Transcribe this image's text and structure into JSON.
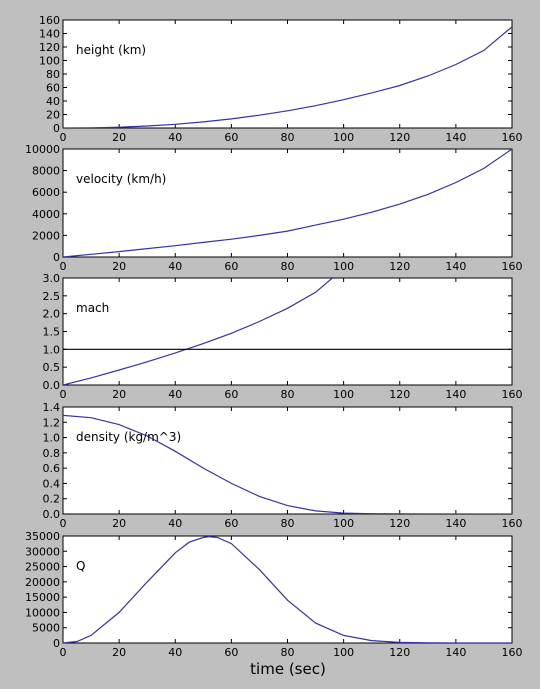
{
  "figure": {
    "background": "#bfbfbf",
    "line_color": "#3333aa",
    "xlabel": "time (sec)"
  },
  "chart_data": [
    {
      "type": "line",
      "label": "height (km)",
      "xlim": [
        0,
        160
      ],
      "ylim": [
        0,
        160
      ],
      "xticks": [
        0,
        20,
        40,
        60,
        80,
        100,
        120,
        140,
        160
      ],
      "yticks": [
        0,
        20,
        40,
        60,
        80,
        100,
        120,
        140,
        160
      ],
      "x": [
        0,
        10,
        20,
        30,
        40,
        50,
        60,
        70,
        80,
        90,
        100,
        110,
        120,
        130,
        140,
        150,
        160
      ],
      "series": [
        {
          "values": [
            0,
            0.3,
            1.2,
            3,
            5.5,
            9,
            13.5,
            19,
            25.5,
            33,
            42,
            52,
            63,
            77,
            94,
            115,
            150
          ]
        }
      ]
    },
    {
      "type": "line",
      "label": "velocity (km/h)",
      "xlim": [
        0,
        160
      ],
      "ylim": [
        0,
        10000
      ],
      "xticks": [
        0,
        20,
        40,
        60,
        80,
        100,
        120,
        140,
        160
      ],
      "yticks": [
        0,
        2000,
        4000,
        6000,
        8000,
        10000
      ],
      "x": [
        0,
        10,
        20,
        30,
        40,
        50,
        60,
        70,
        80,
        90,
        100,
        110,
        120,
        130,
        140,
        150,
        160
      ],
      "series": [
        {
          "values": [
            0,
            250,
            500,
            780,
            1050,
            1350,
            1650,
            2000,
            2400,
            2950,
            3500,
            4150,
            4900,
            5800,
            6900,
            8200,
            10000
          ]
        }
      ]
    },
    {
      "type": "line",
      "label": "mach",
      "xlim": [
        0,
        160
      ],
      "ylim": [
        0,
        3
      ],
      "xticks": [
        0,
        20,
        40,
        60,
        80,
        100,
        120,
        140,
        160
      ],
      "yticks": [
        0.0,
        0.5,
        1.0,
        1.5,
        2.0,
        2.5,
        3.0
      ],
      "x": [
        0,
        10,
        20,
        30,
        40,
        50,
        60,
        70,
        80,
        90,
        96
      ],
      "series": [
        {
          "values": [
            0,
            0.2,
            0.42,
            0.65,
            0.9,
            1.16,
            1.45,
            1.78,
            2.15,
            2.6,
            3.0
          ]
        },
        {
          "values": [
            1,
            1,
            1,
            1,
            1,
            1,
            1,
            1,
            1,
            1,
            1
          ],
          "x": [
            0,
            16,
            32,
            48,
            64,
            80,
            96,
            112,
            128,
            144,
            160
          ],
          "color": "#000000"
        }
      ]
    },
    {
      "type": "line",
      "label": "density (kg/m^3)",
      "xlim": [
        0,
        160
      ],
      "ylim": [
        0,
        1.4
      ],
      "xticks": [
        0,
        20,
        40,
        60,
        80,
        100,
        120,
        140,
        160
      ],
      "yticks": [
        0.0,
        0.2,
        0.4,
        0.6,
        0.8,
        1.0,
        1.2,
        1.4
      ],
      "x": [
        0,
        10,
        20,
        30,
        40,
        50,
        60,
        70,
        80,
        90,
        100,
        110,
        120,
        140,
        160
      ],
      "series": [
        {
          "values": [
            1.29,
            1.26,
            1.17,
            1.02,
            0.82,
            0.6,
            0.4,
            0.23,
            0.11,
            0.04,
            0.012,
            0.004,
            0.001,
            0,
            0
          ]
        }
      ]
    },
    {
      "type": "line",
      "label": "Q",
      "xlim": [
        0,
        160
      ],
      "ylim": [
        0,
        35000
      ],
      "xticks": [
        0,
        20,
        40,
        60,
        80,
        100,
        120,
        140,
        160
      ],
      "yticks": [
        0,
        5000,
        10000,
        15000,
        20000,
        25000,
        30000,
        35000
      ],
      "x": [
        0,
        5,
        10,
        20,
        30,
        40,
        45,
        50,
        52,
        55,
        60,
        70,
        80,
        90,
        100,
        110,
        120,
        130,
        140,
        160
      ],
      "series": [
        {
          "values": [
            0,
            500,
            2500,
            10000,
            20000,
            29500,
            33000,
            34500,
            34800,
            34500,
            32500,
            24000,
            14000,
            6500,
            2500,
            800,
            200,
            50,
            0,
            0
          ]
        }
      ]
    }
  ]
}
